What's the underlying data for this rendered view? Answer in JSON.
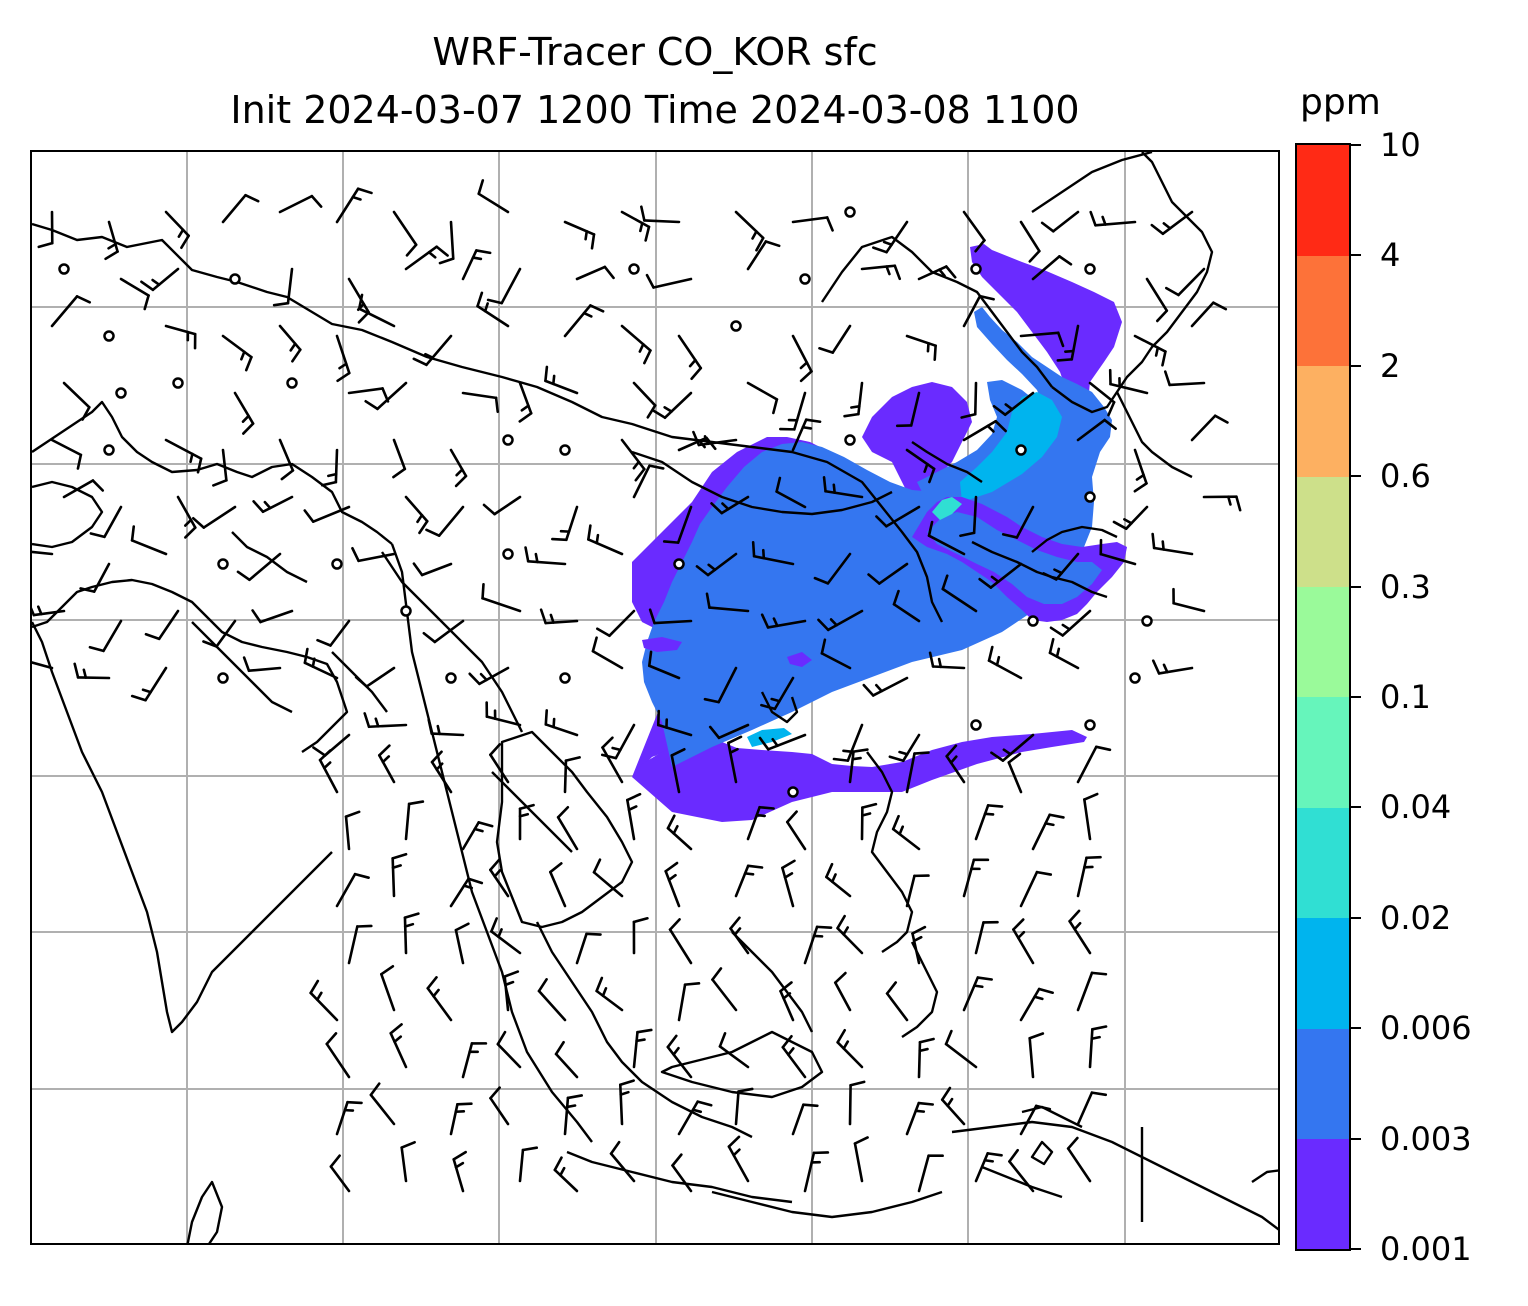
{
  "title": {
    "line1": "WRF-Tracer CO_KOR sfc",
    "line2": "Init 2024-03-07 1200 Time 2024-03-08 1100"
  },
  "colorbar": {
    "unit": "ppm",
    "tick_labels": [
      "0.001",
      "0.003",
      "0.006",
      "0.02",
      "0.04",
      "0.1",
      "0.3",
      "0.6",
      "2",
      "4",
      "10"
    ],
    "colors": [
      "#6a2bff",
      "#3476f0",
      "#00b4ee",
      "#30dfd3",
      "#66f5bb",
      "#9afa9a",
      "#cde08a",
      "#fdb061",
      "#fd7239",
      "#ff2a15"
    ]
  },
  "map": {
    "gridline_color": "#b0b0b0",
    "coastline_color": "#000000",
    "barb_color": "#000000",
    "features": [
      "coastlines",
      "country-borders",
      "lat-lon-gridlines",
      "wind-barbs",
      "calm-wind-circles",
      "tracer-concentration-plume"
    ]
  }
}
